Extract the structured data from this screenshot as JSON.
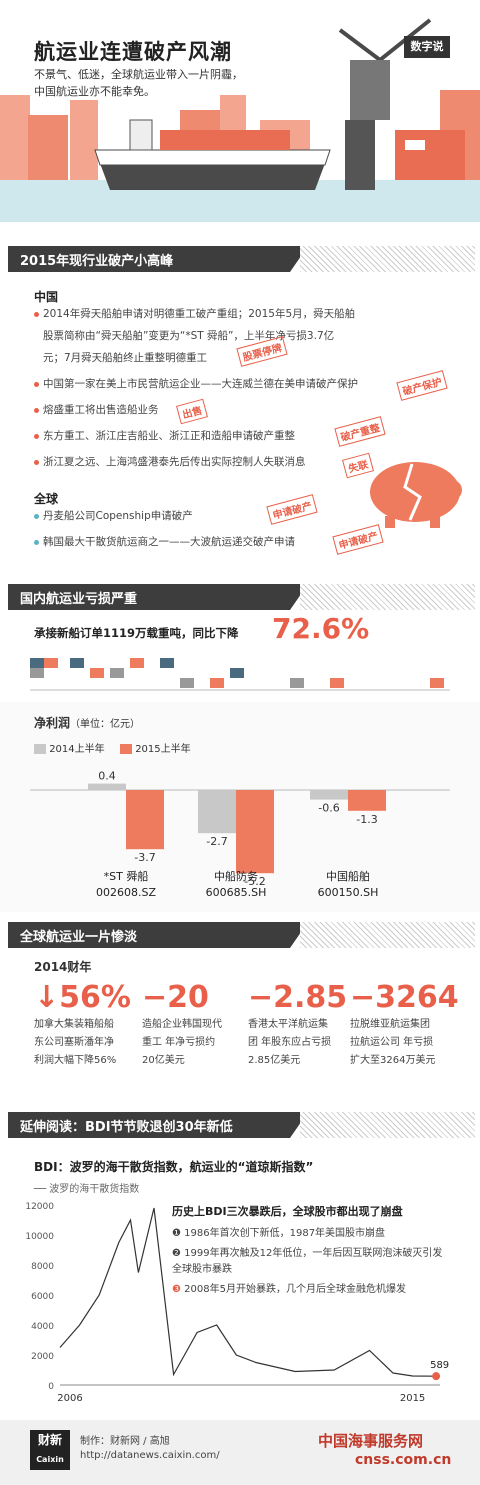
{
  "hero": {
    "title": "航运业连遭破产风潮",
    "subtitle": "不景气、低迷，全球航运业带入一片阴霾，中国航运业亦不能幸免。",
    "badge": "数字说"
  },
  "sec1": {
    "header": "2015年现行业破产小高峰",
    "china_label": "中国",
    "china_items": [
      "2014年舜天船舶申请对明德重工破产重组；2015年5月，舜天船舶",
      "股票简称由“舜天船舶”变更为“*ST 舜船”，上半年净亏损3.7亿",
      "元；7月舜天船舶终止重整明德重工",
      "中国第一家在美上市民营航运企业——大连威兰德在美申请破产保护",
      "熔盛重工将出售造船业务",
      "东方重工、浙江庄吉船业、浙江正和造船申请破产重整",
      "浙江夏之远、上海鸿盛港泰先后传出实际控制人失联消息"
    ],
    "global_label": "全球",
    "global_items": [
      "丹麦船公司Copenship申请破产",
      "韩国最大干散货航运商之一——大波航运递交破产申请"
    ],
    "stamps": [
      "股票停牌",
      "破产保护",
      "出售",
      "破产重整",
      "失联",
      "申请破产",
      "申请破产"
    ]
  },
  "sec2": {
    "header": "国内航运业亏损严重",
    "orders_text": "承接新船订单1119万载重吨，同比下降",
    "orders_pct": "72.6%",
    "profit_title": "净利润",
    "profit_unit": "（单位：亿元）",
    "legend": [
      "2014上半年",
      "2015上半年"
    ],
    "colors": {
      "y2014": "#c8c8c8",
      "y2015": "#ef7b5f"
    }
  },
  "chart_data": [
    {
      "type": "bar",
      "title": "净利润",
      "ylabel": "亿元",
      "categories": [
        "*ST 舜船 002608.SZ",
        "中船防务 600685.SH",
        "中国船舶 600150.SH"
      ],
      "series": [
        {
          "name": "2014上半年",
          "values": [
            0.4,
            -2.7,
            -0.6
          ]
        },
        {
          "name": "2015上半年",
          "values": [
            -3.7,
            -5.2,
            -1.3
          ]
        }
      ]
    },
    {
      "type": "line",
      "title": "BDI：波罗的海干散货指数，航运业的“道琼斯指数”",
      "series": [
        {
          "name": "波罗的海干散货指数"
        }
      ],
      "yticks": [
        "12000",
        "10000",
        "8000",
        "6000",
        "4000",
        "2000",
        "0"
      ],
      "xticks": [
        "2006",
        "2015"
      ],
      "last_label": "589",
      "x": [
        2006,
        2006.5,
        2007,
        2007.5,
        2007.8,
        2008,
        2008.4,
        2008.9,
        2009.5,
        2010,
        2010.5,
        2011,
        2012,
        2013,
        2013.9,
        2014.5,
        2015,
        2015.6
      ],
      "y": [
        2500,
        4000,
        6000,
        9500,
        11000,
        7500,
        11800,
        700,
        3500,
        4000,
        2000,
        1500,
        900,
        1000,
        2300,
        800,
        600,
        589
      ]
    }
  ],
  "cats": [
    {
      "name": "*ST 舜船",
      "code": "002608.SZ",
      "a": "0.4",
      "b": "-3.7"
    },
    {
      "name": "中船防务",
      "code": "600685.SH",
      "a": "-2.7",
      "b": "-5.2"
    },
    {
      "name": "中国船舶",
      "code": "600150.SH",
      "a": "-0.6",
      "b": "-1.3"
    }
  ],
  "sec3": {
    "header": "全球航运业一片惨淡",
    "year": "2014财年",
    "stats": [
      {
        "num": "↓56%",
        "desc": "加拿大集装箱船船东公司塞斯潘年净利润大幅下降56%"
      },
      {
        "num": "−20",
        "desc": "造船企业韩国现代重工 年净亏损约20亿美元"
      },
      {
        "num": "−2.85",
        "desc": "香港太平洋航运集团 年股东应占亏损2.85亿美元"
      },
      {
        "num": "−3264",
        "desc": "拉脱维亚航运集团拉航运公司 年亏损扩大至3264万美元"
      }
    ]
  },
  "sec4": {
    "header": "延伸阅读：BDI节节败退创30年新低",
    "note_title": "历史上BDI三次暴跌后，全球股市都出现了崩盘",
    "notes": [
      "1986年首次创下新低，1987年美国股市崩盘",
      "1999年再次触及12年低位，一年后因互联网泡沫破灭引发全球股市暴跌",
      "2008年5月开始暴跌，几个月后全球金融危机爆发"
    ]
  },
  "footer": {
    "logo": "财新",
    "logo_en": "Caixin",
    "credit": "制作：财新网 / 高旭",
    "url": "http://datanews.caixin.com/",
    "watermark": "中国海事服务网",
    "watermark2": "cnss.com.cn"
  }
}
